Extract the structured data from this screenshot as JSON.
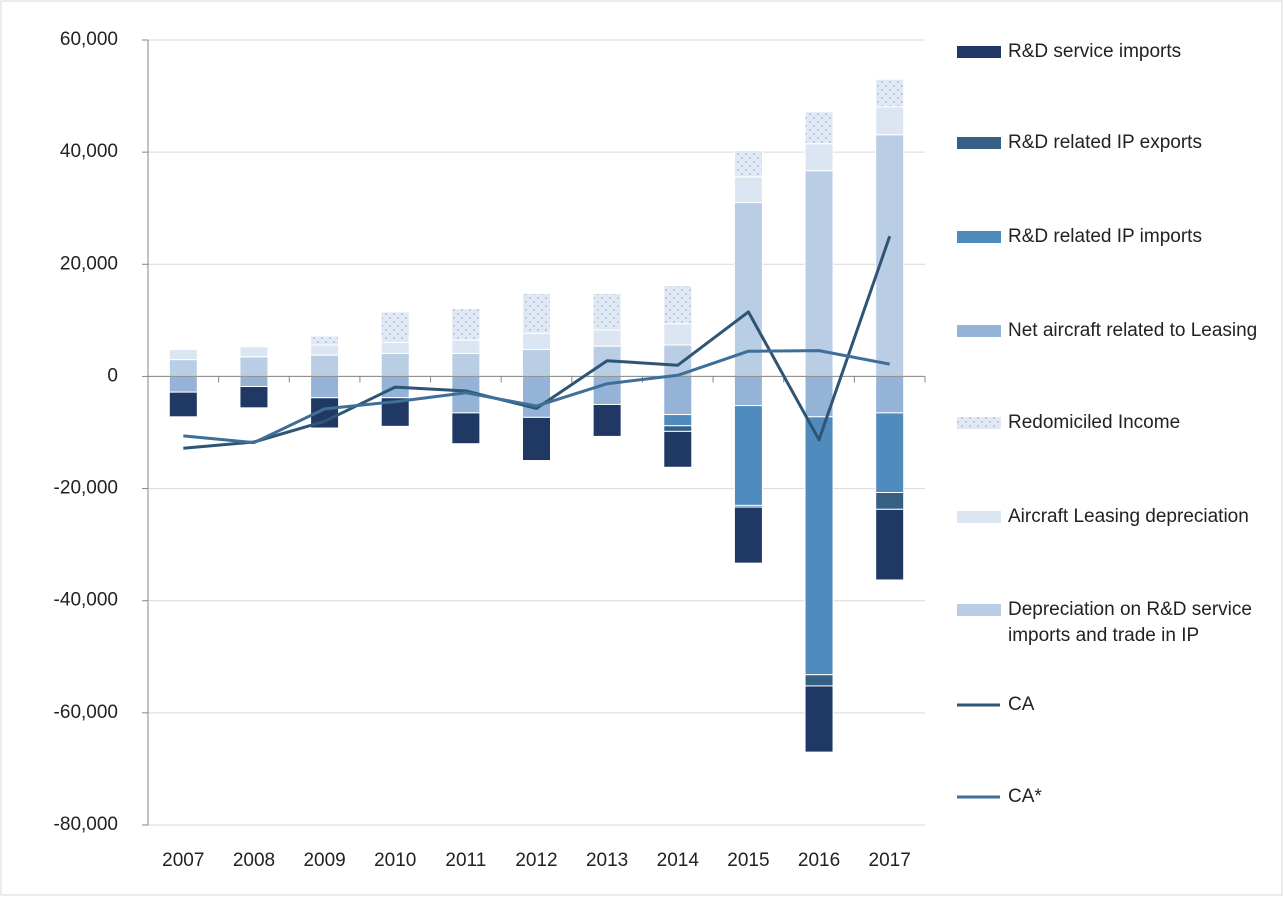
{
  "chart_data": {
    "type": "bar",
    "categories": [
      "2007",
      "2008",
      "2009",
      "2010",
      "2011",
      "2012",
      "2013",
      "2014",
      "2015",
      "2016",
      "2017"
    ],
    "series": [
      {
        "name": "R&D service imports",
        "color": "#1f3864",
        "values": [
          -4400,
          -3800,
          -5400,
          -5100,
          -5500,
          -7700,
          -5700,
          -6400,
          -10000,
          -11800,
          -12600
        ]
      },
      {
        "name": "R&D related IP exports",
        "color": "#355f83",
        "values": [
          0,
          0,
          0,
          0,
          0,
          0,
          0,
          -1000,
          -300,
          -2000,
          -3000
        ]
      },
      {
        "name": "R&D related IP imports",
        "color": "#4f8bbd",
        "values": [
          0,
          0,
          0,
          0,
          0,
          0,
          0,
          -2000,
          -17800,
          -46000,
          -14200
        ]
      },
      {
        "name": "Net aircraft related to Leasing",
        "color": "#95b3d7",
        "values": [
          -2800,
          -1800,
          -3800,
          -3800,
          -6500,
          -7300,
          -5000,
          -6800,
          -5200,
          -7200,
          -6500
        ]
      },
      {
        "name": "Redomiciled Income",
        "color": "#dfe8f3",
        "pattern": "dots",
        "values": [
          0,
          0,
          1600,
          5400,
          5600,
          7100,
          6500,
          6800,
          4700,
          5700,
          4900
        ]
      },
      {
        "name": "Aircraft Leasing depreciation",
        "color": "#dce6f2",
        "values": [
          1800,
          1800,
          1800,
          2000,
          2400,
          2900,
          2900,
          3800,
          4600,
          4800,
          5000
        ]
      },
      {
        "name": "Depreciation on R&D service imports and trade in IP",
        "color": "#b9cde5",
        "values": [
          3000,
          3500,
          3800,
          4100,
          4100,
          4800,
          5400,
          5600,
          31000,
          36700,
          43100
        ]
      },
      {
        "name": "CA",
        "type": "line",
        "color": "#2f5574",
        "values": [
          -12800,
          -11700,
          -8000,
          -1900,
          -2600,
          -5700,
          2800,
          2000,
          11500,
          -11300,
          25000
        ]
      },
      {
        "name": "CA*",
        "type": "line",
        "color": "#3e6f99",
        "values": [
          -10600,
          -11800,
          -5800,
          -4500,
          -2900,
          -5300,
          -1300,
          200,
          4500,
          4600,
          2200
        ]
      }
    ],
    "ylim": [
      -80000,
      60000
    ],
    "yticks": [
      {
        "value": -80000,
        "label": "-80,000"
      },
      {
        "value": -60000,
        "label": "-60,000"
      },
      {
        "value": -40000,
        "label": "-40,000"
      },
      {
        "value": -20000,
        "label": "-20,000"
      },
      0,
      {
        "value": 20000,
        "label": "20,000"
      },
      {
        "value": 40000,
        "label": "40,000"
      },
      {
        "value": 60000,
        "label": "60,000"
      }
    ],
    "grid": true,
    "legend": "right"
  }
}
